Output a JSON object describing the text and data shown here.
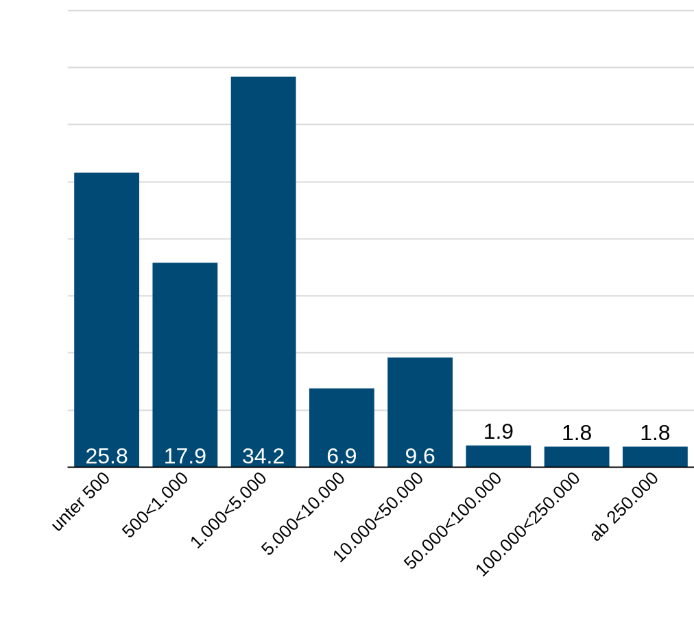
{
  "chart_data": {
    "type": "bar",
    "categories": [
      "unter 500",
      "500<1.000",
      "1.000<5.000",
      "5.000<10.000",
      "10.000<50.000",
      "50.000<100.000",
      "100.000<250.000",
      "ab 250.000"
    ],
    "values": [
      25.8,
      17.9,
      34.2,
      6.9,
      9.6,
      1.9,
      1.8,
      1.8
    ],
    "color": "#004a75",
    "yticks": [
      {
        "value": 5,
        "label": null
      },
      {
        "value": 10,
        "label": null
      },
      {
        "value": 15,
        "label": null
      },
      {
        "value": 20,
        "label": null
      },
      {
        "value": 25,
        "label": null
      },
      {
        "value": 30,
        "label": null
      },
      {
        "value": 35,
        "label": null
      },
      {
        "value": 40,
        "label": null
      }
    ],
    "tick_labels": "x",
    "grid": "y",
    "data_labels": true
  }
}
